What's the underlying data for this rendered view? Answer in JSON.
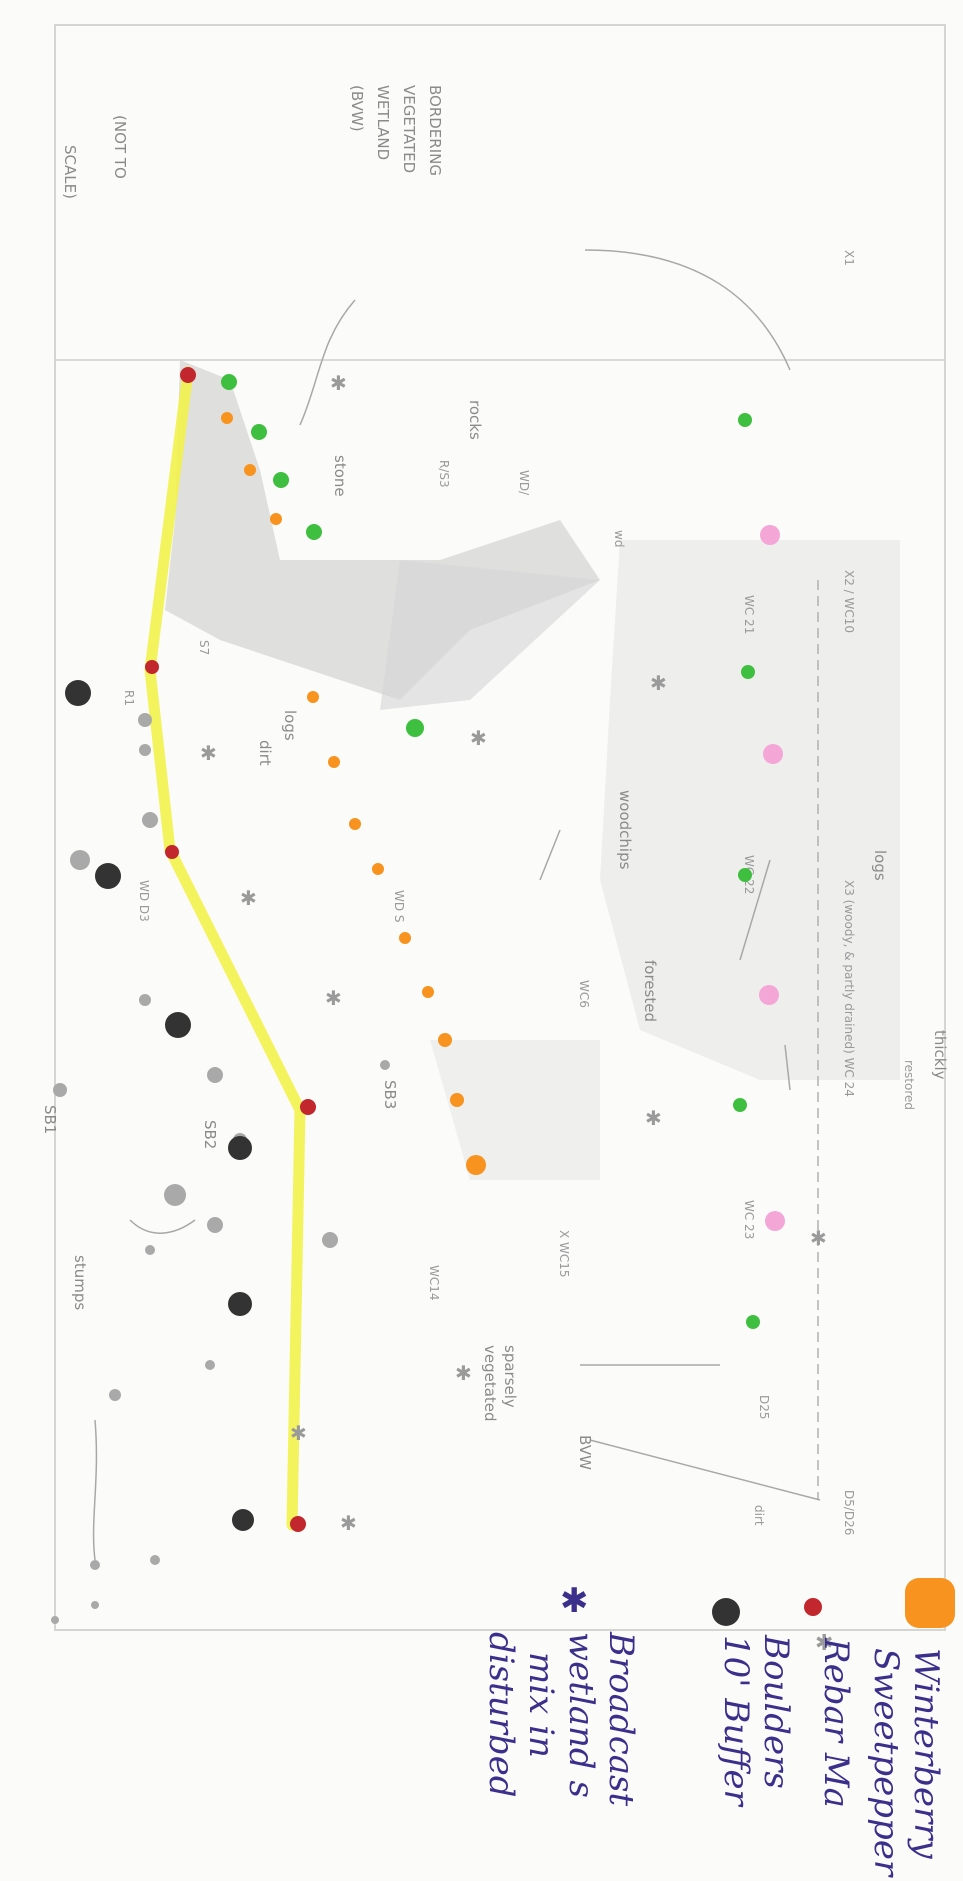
{
  "note_scale": [
    "(NOT TO",
    "SCALE)"
  ],
  "note_wetland": [
    "BORDERING",
    "VEGETATED",
    "WETLAND",
    "(BVW)"
  ],
  "labels": {
    "stone": "stone",
    "rocks": "rocks",
    "rs3": "R/S3",
    "wd": "WD/",
    "wd2": "wd",
    "s7": "S7",
    "r1": "R1",
    "logs": "logs",
    "dirt": "dirt",
    "logs_dirt": "logs",
    "woodchips": "woodchips",
    "wd_d3": "WD D3",
    "forested": "forested",
    "thickly": "thickly",
    "sb3": "SB3",
    "sb2": "SB2",
    "sb1": "SB1",
    "wc6": "WC6",
    "wc15": "X WC15",
    "wc14": "WC14",
    "stumps": "stumps",
    "sparsely": "sparsely",
    "vegetated": "vegetated",
    "bvw": "BVW",
    "dirt2": "dirt",
    "x1": "X1",
    "x2": "X2 / WC10",
    "wc21": "WC 21",
    "wc22": "WC 22",
    "x3": "X3 (woody, & partly drained) WC 24",
    "wc23": "WC 23",
    "d25": "D25",
    "d26": "D5/D26",
    "restored": "restored",
    "wd_s": "WD S"
  },
  "legend": {
    "items": [
      {
        "symbol": "orange-dot",
        "lines": [
          "Winterberry",
          "Sweetpepper"
        ],
        "color": "#f7931e"
      },
      {
        "symbol": "red-dot",
        "lines": [
          "Rebar Ma"
        ],
        "color": "#c1272d"
      },
      {
        "symbol": "black-dot",
        "lines": [
          "Boulders",
          "10' Buffer"
        ],
        "color": "#333333"
      },
      {
        "symbol": "asterisk",
        "lines": [
          "Broadcast",
          "wetland s",
          "mix in",
          "disturbed"
        ],
        "color": "#3b2f8c"
      }
    ]
  },
  "colors": {
    "green": "#3fbf3f",
    "pink": "#f4a6d7",
    "orange": "#f7931e",
    "red": "#c1272d",
    "black": "#333333",
    "yellow": "#f2f24b",
    "pencil": "#9a9a9a",
    "ink": "#3b2f8c"
  }
}
